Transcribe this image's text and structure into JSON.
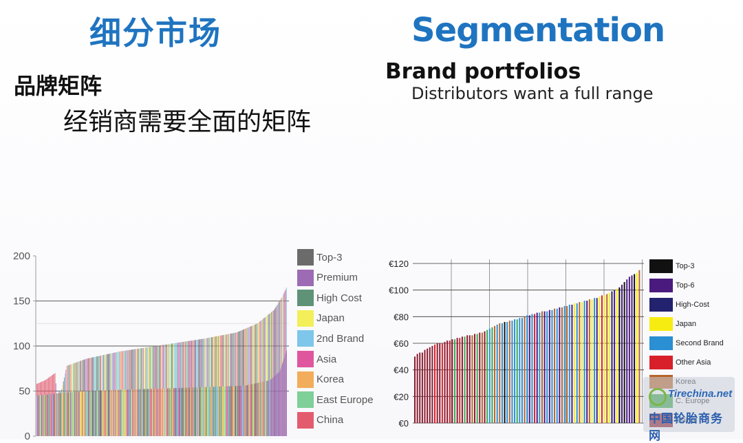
{
  "slide": {
    "title_cn": "细分市场",
    "title_en": "Segmentation",
    "subtitle_cn": "品牌矩阵",
    "desc_cn": "经销商需要全面的矩阵",
    "subtitle_en": "Brand portfolios",
    "desc_en": "Distributors want a full range"
  },
  "watermark": {
    "text_en": "Tirechina.net",
    "text_cn": "中国轮胎商务网"
  },
  "chart_data": [
    {
      "type": "bar",
      "title": "",
      "xlabel": "",
      "ylabel": "",
      "ylim": [
        0,
        200
      ],
      "yticks": [
        "200",
        "150",
        "100",
        "50",
        "0"
      ],
      "grid": true,
      "legend_position": "right",
      "description_of_series": "~300 brands sorted ascending; two overlaid sorted series (upper ~47-165, lower ~45-95)",
      "series": [
        {
          "name": "Top-3",
          "color": "#6b6b6b"
        },
        {
          "name": "Premium",
          "color": "#9c6bb4"
        },
        {
          "name": "High Cost",
          "color": "#5f9277"
        },
        {
          "name": "Japan",
          "color": "#f2ef5a"
        },
        {
          "name": "2nd Brand",
          "color": "#7ec6ea"
        },
        {
          "name": "Asia",
          "color": "#e0569e"
        },
        {
          "name": "Korea",
          "color": "#f2ad5c"
        },
        {
          "name": "East Europe",
          "color": "#7fcf98"
        },
        {
          "name": "China",
          "color": "#e25c6e"
        }
      ],
      "upper_series_points": [
        [
          0,
          58
        ],
        [
          10,
          62
        ],
        [
          22,
          70
        ],
        [
          24,
          47
        ],
        [
          30,
          52
        ],
        [
          36,
          78
        ],
        [
          60,
          86
        ],
        [
          100,
          94
        ],
        [
          150,
          101
        ],
        [
          200,
          108
        ],
        [
          240,
          115
        ],
        [
          265,
          125
        ],
        [
          285,
          140
        ],
        [
          295,
          155
        ],
        [
          300,
          165
        ]
      ],
      "lower_series_points": [
        [
          0,
          45
        ],
        [
          30,
          48
        ],
        [
          60,
          50
        ],
        [
          120,
          52
        ],
        [
          190,
          54
        ],
        [
          250,
          56
        ],
        [
          280,
          62
        ],
        [
          292,
          72
        ],
        [
          300,
          95
        ]
      ]
    },
    {
      "type": "bar",
      "title": "",
      "xlabel": "",
      "ylabel": "",
      "ylim": [
        0,
        120
      ],
      "yticks": [
        "€120",
        "€100",
        "€80",
        "€60",
        "€40",
        "€20",
        "€0"
      ],
      "grid": true,
      "legend_position": "right",
      "series": [
        {
          "name": "Top-3",
          "color": "#111111"
        },
        {
          "name": "Top-6",
          "color": "#4b1a7e"
        },
        {
          "name": "High-Cost",
          "color": "#23226e"
        },
        {
          "name": "Japan",
          "color": "#f7ec12"
        },
        {
          "name": "Second Brand",
          "color": "#2a8fd3"
        },
        {
          "name": "Other Asia",
          "color": "#d8202a"
        },
        {
          "name": "Korea",
          "color": "#b8642a"
        },
        {
          "name": "C. Europe",
          "color": "#3aa64f"
        },
        {
          "name": "China",
          "color": "#8b1a2e"
        }
      ],
      "values": [
        50,
        52,
        53,
        53,
        55,
        56,
        57,
        58,
        59,
        60,
        60,
        60,
        61,
        62,
        62,
        63,
        63,
        64,
        64,
        65,
        65,
        66,
        66,
        66,
        67,
        67,
        68,
        68,
        69,
        70,
        71,
        72,
        73,
        74,
        75,
        75,
        76,
        76,
        77,
        77,
        78,
        78,
        79,
        79,
        80,
        81,
        81,
        82,
        82,
        83,
        83,
        84,
        84,
        84,
        85,
        85,
        86,
        86,
        87,
        87,
        88,
        88,
        89,
        89,
        90,
        90,
        91,
        91,
        92,
        92,
        93,
        93,
        94,
        94,
        95,
        96,
        96,
        97,
        98,
        99,
        100,
        101,
        102,
        104,
        106,
        108,
        110,
        111,
        112,
        113,
        115
      ],
      "colors": [
        "China",
        "China",
        "China",
        "China",
        "China",
        "China",
        "China",
        "China",
        "Other Asia",
        "China",
        "China",
        "Other Asia",
        "China",
        "China",
        "Other Asia",
        "China",
        "C. Europe",
        "China",
        "Other Asia",
        "China",
        "C. Europe",
        "China",
        "China",
        "Korea",
        "China",
        "C. Europe",
        "China",
        "Korea",
        "China",
        "C. Europe",
        "Second Brand",
        "C. Europe",
        "Korea",
        "Second Brand",
        "Korea",
        "Second Brand",
        "Top-3",
        "Second Brand",
        "Korea",
        "Second Brand",
        "Second Brand",
        "C. Europe",
        "Second Brand",
        "Second Brand",
        "Korea",
        "Second Brand",
        "Top-6",
        "Second Brand",
        "Other Asia",
        "Top-6",
        "Second Brand",
        "Korea",
        "Top-6",
        "Second Brand",
        "Top-6",
        "Second Brand",
        "Korea",
        "Second Brand",
        "Top-6",
        "Korea",
        "Second Brand",
        "Korea",
        "Second Brand",
        "Top-6",
        "Japan",
        "Second Brand",
        "Korea",
        "Japan",
        "Second Brand",
        "Top-6",
        "Korea",
        "Japan",
        "Second Brand",
        "Top-6",
        "Japan",
        "Other Asia",
        "Japan",
        "Korea",
        "Japan",
        "High-Cost",
        "Top-6",
        "Japan",
        "Top-3",
        "Top-6",
        "Top-3",
        "Top-6",
        "Top-6",
        "Top-6",
        "Top-3",
        "Japan",
        "Korea"
      ]
    }
  ]
}
